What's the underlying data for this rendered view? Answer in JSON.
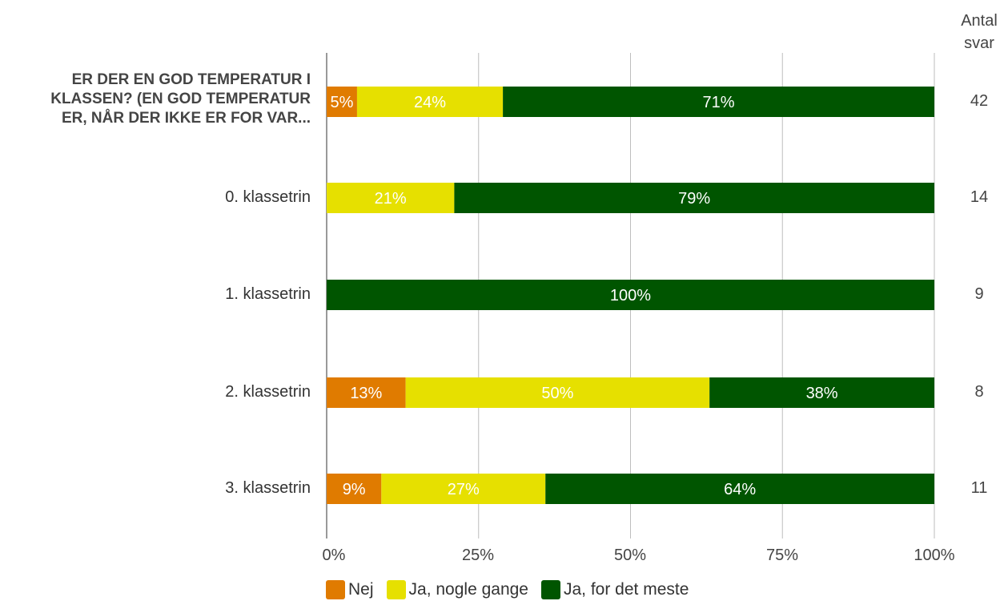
{
  "chart_data": {
    "type": "bar",
    "orientation": "horizontal",
    "stacked": true,
    "categories": [
      "ER DER EN GOD TEMPERATUR I KLASSEN? (EN GOD TEMPERATUR ER, NÅR DER IKKE ER FOR VAR...",
      "0. klassetrin",
      "1. klassetrin",
      "2. klassetrin",
      "3. klassetrin"
    ],
    "series": [
      {
        "name": "Nej",
        "color": "#e07b00",
        "values": [
          5,
          0,
          0,
          13,
          9
        ],
        "labels": [
          "5%",
          "",
          "",
          "13%",
          "9%"
        ]
      },
      {
        "name": "Ja, nogle gange",
        "color": "#e6e000",
        "values": [
          24,
          21,
          0,
          50,
          27
        ],
        "labels": [
          "24%",
          "21%",
          "",
          "50%",
          "27%"
        ]
      },
      {
        "name": "Ja, for det meste",
        "color": "#005500",
        "values": [
          71,
          79,
          100,
          38,
          64
        ],
        "labels": [
          "71%",
          "79%",
          "100%",
          "38%",
          "64%"
        ]
      }
    ],
    "counts_header": "Antal svar",
    "counts_header_lines": [
      "Antal",
      "svar"
    ],
    "counts": [
      "42",
      "14",
      "9",
      "8",
      "11"
    ],
    "xlim": [
      0,
      100
    ],
    "xticks": [
      "0%",
      "25%",
      "50%",
      "75%",
      "100%"
    ],
    "grid": true,
    "legend_position": "bottom"
  }
}
